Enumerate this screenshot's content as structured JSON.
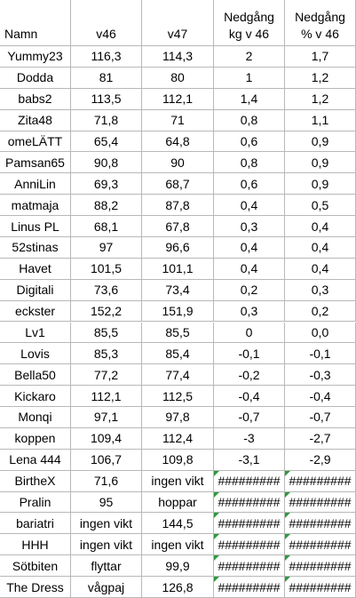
{
  "table": {
    "header": [
      [
        "Namn"
      ],
      [
        "v46"
      ],
      [
        "v47"
      ],
      [
        "Nedgång",
        "kg v 46"
      ],
      [
        "Nedgång",
        "% v 46"
      ]
    ],
    "rows": [
      [
        "Yummy23",
        "116,3",
        "114,3",
        "2",
        "1,7"
      ],
      [
        "Dodda",
        "81",
        "80",
        "1",
        "1,2"
      ],
      [
        "babs2",
        "113,5",
        "112,1",
        "1,4",
        "1,2"
      ],
      [
        "Zita48",
        "71,8",
        "71",
        "0,8",
        "1,1"
      ],
      [
        "omeLÄTT",
        "65,4",
        "64,8",
        "0,6",
        "0,9"
      ],
      [
        "Pamsan65",
        "90,8",
        "90",
        "0,8",
        "0,9"
      ],
      [
        "AnniLin",
        "69,3",
        "68,7",
        "0,6",
        "0,9"
      ],
      [
        "matmaja",
        "88,2",
        "87,8",
        "0,4",
        "0,5"
      ],
      [
        "Linus PL",
        "68,1",
        "67,8",
        "0,3",
        "0,4"
      ],
      [
        "52stinas",
        "97",
        "96,6",
        "0,4",
        "0,4"
      ],
      [
        "Havet",
        "101,5",
        "101,1",
        "0,4",
        "0,4"
      ],
      [
        "Digitali",
        "73,6",
        "73,4",
        "0,2",
        "0,3"
      ],
      [
        "eckster",
        "152,2",
        "151,9",
        "0,3",
        "0,2"
      ],
      [
        "Lv1",
        "85,5",
        "85,5",
        "0",
        "0,0"
      ],
      [
        "Lovis",
        "85,3",
        "85,4",
        "-0,1",
        "-0,1"
      ],
      [
        "Bella50",
        "77,2",
        "77,4",
        "-0,2",
        "-0,3"
      ],
      [
        "Kickaro",
        "112,1",
        "112,5",
        "-0,4",
        "-0,4"
      ],
      [
        "Monqi",
        "97,1",
        "97,8",
        "-0,7",
        "-0,7"
      ],
      [
        "koppen",
        "109,4",
        "112,4",
        "-3",
        "-2,7"
      ],
      [
        "Lena 444",
        "106,7",
        "109,8",
        "-3,1",
        "-2,9"
      ],
      [
        "BirtheX",
        "71,6",
        "ingen vikt",
        "#########",
        "#########"
      ],
      [
        "Pralin",
        "95",
        "hoppar",
        "#########",
        "#########"
      ],
      [
        "bariatri",
        "ingen vikt",
        "144,5",
        "#########",
        "#########"
      ],
      [
        "HHH",
        "ingen vikt",
        "ingen vikt",
        "#########",
        "#########"
      ],
      [
        "Sötbiten",
        "flyttar",
        "99,9",
        "#########",
        "#########"
      ],
      [
        "The Dress",
        "vågpaj",
        "126,8",
        "#########",
        "#########"
      ]
    ]
  }
}
